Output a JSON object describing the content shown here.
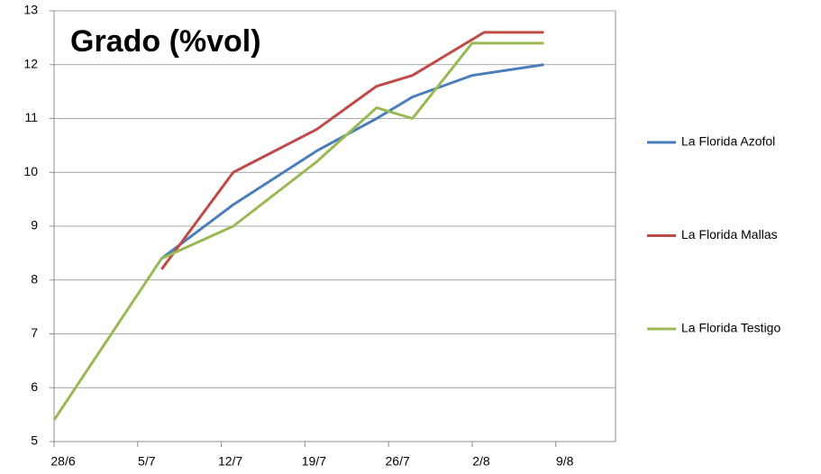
{
  "chart_data": {
    "type": "line",
    "title": "Grado (%vol)",
    "xlim": [
      "28/6",
      "14/8"
    ],
    "xticks": [
      "28/6",
      "5/7",
      "12/7",
      "19/7",
      "26/7",
      "2/8",
      "9/8"
    ],
    "ylim": [
      5,
      13
    ],
    "yticks": [
      5,
      6,
      7,
      8,
      9,
      10,
      11,
      12,
      13
    ],
    "grid": true,
    "series": [
      {
        "name": "La Florida Azofol",
        "color": "#4a7ebb",
        "x": [
          "7/7",
          "13/7",
          "20/7",
          "25/7",
          "28/7",
          "2/8",
          "8/8"
        ],
        "values": [
          8.4,
          9.4,
          10.4,
          11.0,
          11.4,
          11.8,
          12.0
        ]
      },
      {
        "name": "La Florida Mallas",
        "color": "#be4b48",
        "x": [
          "7/7",
          "13/7",
          "20/7",
          "25/7",
          "28/7",
          "3/8",
          "8/8"
        ],
        "values": [
          8.2,
          10.0,
          10.8,
          11.6,
          11.8,
          12.6,
          12.6
        ]
      },
      {
        "name": "La Florida Testigo",
        "color": "#98b954",
        "x": [
          "28/6",
          "7/7",
          "13/7",
          "20/7",
          "25/7",
          "28/7",
          "2/8",
          "8/8"
        ],
        "values": [
          5.4,
          8.4,
          9.0,
          10.2,
          11.2,
          11.0,
          12.4,
          12.4
        ]
      }
    ]
  }
}
